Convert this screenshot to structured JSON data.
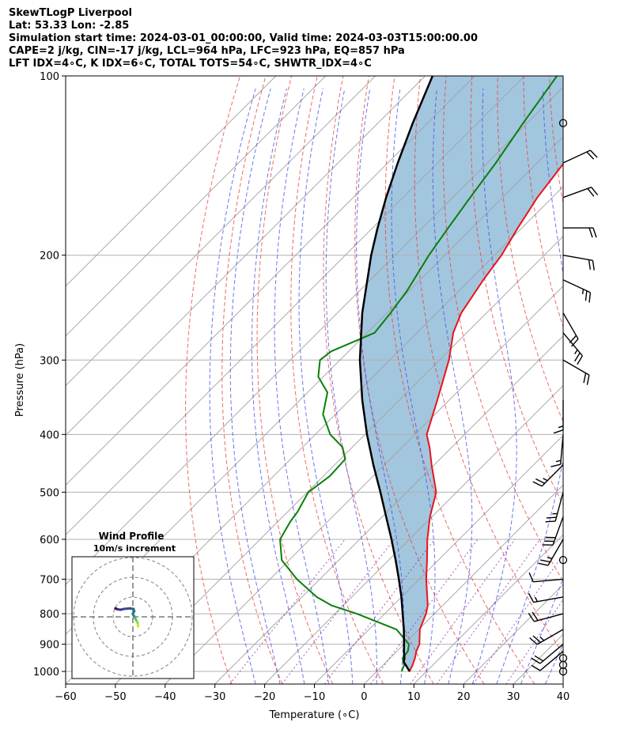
{
  "title_lines": [
    "SkewTLogP Liverpool",
    "Lat: 53.33   Lon: -2.85",
    "Simulation start time: 2024-03-01_00:00:00, Valid time: 2024-03-03T15:00:00.00",
    "CAPE=2 j/kg, CIN=-17 j/kg, LCL=964 hPa, LFC=923 hPa, EQ=857 hPa",
    "LFT IDX=4∘C, K IDX=6∘C, TOTAL TOTS=54∘C, SHWTR_IDX=4∘C"
  ],
  "colors": {
    "temperature": "#e8141c",
    "dewpoint": "#0a7f0a",
    "parcel": "#000000",
    "cape_fill": "#a3c6df",
    "dry_adiabat": "#e53935",
    "moist_adiabat": "#3949e5",
    "mixing_ratio": "#9c27b0",
    "isotherm": "#a0a0a0",
    "grid": "#b0b0b0"
  },
  "chart_data": {
    "type": "skew-t log-p",
    "xlabel": "Temperature ($^\\circ$C)",
    "ylabel": "Pressure (hPa)",
    "xlim": [
      -60,
      40
    ],
    "ylim": [
      1050,
      100
    ],
    "xticks": [
      "−60",
      "−50",
      "−40",
      "−30",
      "−20",
      "−10",
      "0",
      "10",
      "20",
      "30",
      "40"
    ],
    "yticks": [
      "100",
      "200",
      "300",
      "400",
      "500",
      "600",
      "700",
      "800",
      "900",
      "1000"
    ],
    "skew_deg": 45,
    "temperature": {
      "name": "Temperature",
      "pressure": [
        1000,
        975,
        950,
        925,
        900,
        850,
        800,
        775,
        750,
        700,
        650,
        600,
        550,
        500,
        450,
        420,
        400,
        350,
        300,
        270,
        250,
        220,
        200,
        180,
        160,
        140,
        120,
        100
      ],
      "values": [
        6.6,
        5.9,
        5.0,
        3.9,
        3.1,
        0.2,
        -1.7,
        -3.0,
        -4.8,
        -8.6,
        -12.3,
        -16.4,
        -20.4,
        -24.1,
        -30.5,
        -34.5,
        -37.6,
        -42.4,
        -48.1,
        -52.7,
        -55.1,
        -57.3,
        -58.6,
        -60.8,
        -63.0,
        -64.6,
        -66.4,
        -68.3
      ]
    },
    "dewpoint": {
      "name": "Dewpoint",
      "pressure": [
        1000,
        975,
        950,
        925,
        900,
        850,
        800,
        775,
        750,
        700,
        650,
        600,
        560,
        540,
        500,
        470,
        440,
        420,
        400,
        370,
        340,
        320,
        300,
        290,
        270,
        250,
        230,
        200,
        180,
        160,
        140,
        120,
        100
      ],
      "values": [
        5.0,
        4.2,
        2.5,
        2.2,
        1.0,
        -4.5,
        -15.6,
        -22.3,
        -27.0,
        -34.6,
        -41.5,
        -46.0,
        -47.5,
        -48.0,
        -49.8,
        -48.7,
        -49.0,
        -52.0,
        -57.0,
        -62.5,
        -66.0,
        -71.0,
        -74.0,
        -73.5,
        -68.5,
        -69.3,
        -70.4,
        -73.2,
        -74.8,
        -76.5,
        -78.3,
        -80.8,
        -83.5
      ]
    },
    "parcel": {
      "name": "Parcel",
      "pressure": [
        1000,
        975,
        964,
        950,
        925,
        900,
        850,
        800,
        750,
        700,
        650,
        600,
        550,
        500,
        450,
        400,
        350,
        300,
        250,
        200,
        180,
        160,
        140,
        120,
        100
      ],
      "values": [
        6.6,
        4.5,
        3.5,
        2.9,
        1.4,
        0.0,
        -3.0,
        -6.4,
        -10.0,
        -14.1,
        -18.6,
        -23.6,
        -29.2,
        -35.3,
        -42.2,
        -49.6,
        -57.5,
        -66.0,
        -75.0,
        -84.8,
        -89.0,
        -93.4,
        -98.0,
        -103.0,
        -108.5
      ]
    },
    "wind_barbs": {
      "pressure": [
        1000,
        975,
        950,
        925,
        900,
        850,
        800,
        750,
        700,
        650,
        600,
        550,
        500,
        450,
        400,
        350,
        300,
        270,
        250,
        220,
        200,
        180,
        160,
        140,
        120
      ],
      "speed_kt": [
        0,
        0,
        0,
        10,
        20,
        25,
        20,
        15,
        10,
        0,
        25,
        30,
        25,
        25,
        15,
        15,
        20,
        25,
        20,
        25,
        20,
        20,
        20,
        20,
        0
      ],
      "direction_deg": [
        0,
        0,
        0,
        230,
        230,
        240,
        255,
        260,
        265,
        0,
        210,
        200,
        195,
        225,
        185,
        180,
        120,
        140,
        150,
        115,
        100,
        90,
        70,
        65,
        0
      ]
    },
    "hodograph": {
      "title": "Wind Profile",
      "subtitle": "10m/s increment",
      "u": [
        2.6,
        2.5,
        2.4,
        2.1,
        1.6,
        1.0,
        0.7,
        0.5,
        0.4,
        -0.1,
        0.7,
        0.3,
        -1.5,
        -4.5,
        -6.2,
        -7.8,
        -8.6,
        -8.9
      ],
      "v": [
        -4.8,
        -3.8,
        -3.0,
        -2.5,
        -1.5,
        -0.6,
        0.2,
        0.5,
        0.7,
        1.5,
        2.8,
        4.0,
        4.3,
        4.0,
        3.6,
        3.8,
        4.2,
        4.3
      ]
    }
  }
}
